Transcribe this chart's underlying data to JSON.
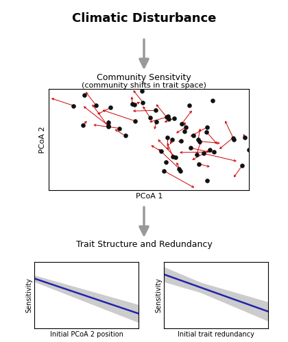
{
  "title_top": "Climatic Disturbance",
  "title_mid": "Community Sensitvity",
  "subtitle_mid": "(community shifts in trait space)",
  "title_bot": "Trait Structure and Redundancy",
  "pcoa_xlabel": "PCoA 1",
  "pcoa_ylabel": "PCoA 2",
  "plot1_xlabel": "Initial PCoA 2 position",
  "plot1_ylabel": "Sensitivity",
  "plot2_xlabel": "Initial trait redundancy",
  "plot2_ylabel": "Sensitivity",
  "arrow_color": "#999999",
  "background_color": "#ffffff",
  "line_color": "#2222aa",
  "ci_color": "#cccccc",
  "scatter_color": "#111111",
  "red_arrow_color": "#cc0000",
  "border_color": "#000000",
  "title_fontsize": 13,
  "label_fontsize": 9,
  "sublabel_fontsize": 8,
  "axis_label_fontsize": 8
}
